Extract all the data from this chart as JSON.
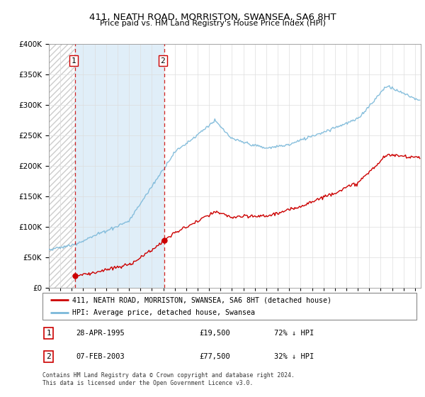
{
  "title": "411, NEATH ROAD, MORRISTON, SWANSEA, SA6 8HT",
  "subtitle": "Price paid vs. HM Land Registry's House Price Index (HPI)",
  "legend_line1": "411, NEATH ROAD, MORRISTON, SWANSEA, SA6 8HT (detached house)",
  "legend_line2": "HPI: Average price, detached house, Swansea",
  "annotation1_label": "1",
  "annotation1_date": "28-APR-1995",
  "annotation1_price": "£19,500",
  "annotation1_hpi": "72% ↓ HPI",
  "annotation2_label": "2",
  "annotation2_date": "07-FEB-2003",
  "annotation2_price": "£77,500",
  "annotation2_hpi": "32% ↓ HPI",
  "footer": "Contains HM Land Registry data © Crown copyright and database right 2024.\nThis data is licensed under the Open Government Licence v3.0.",
  "sale1_year": 1995.32,
  "sale1_price": 19500,
  "sale2_year": 2003.1,
  "sale2_price": 77500,
  "hpi_color": "#7ab8d9",
  "hpi_fill_color": "#cce4f4",
  "sale_color": "#cc0000",
  "vline_color": "#cc0000",
  "hatch_color": "#cccccc",
  "ylim_max": 400000,
  "ylim_min": 0,
  "xlim_min": 1993,
  "xlim_max": 2025.5
}
